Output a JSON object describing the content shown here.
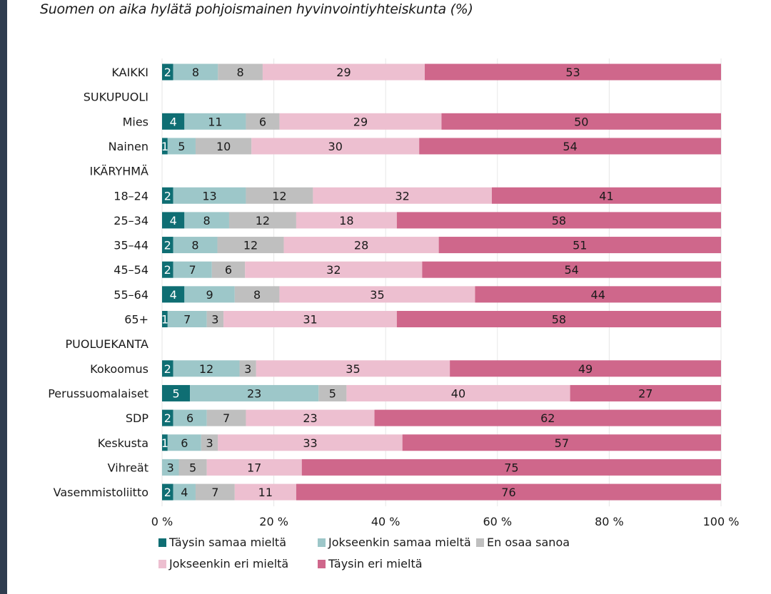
{
  "chart_data": {
    "type": "bar",
    "orientation": "horizontal",
    "stacked": true,
    "title": "Suomen on aika hylätä pohjoismainen hyvinvointiyhteiskunta (%)",
    "xlabel": "",
    "ylabel": "",
    "xlim": [
      0,
      100
    ],
    "x_ticks": [
      "0 %",
      "20 %",
      "40 %",
      "60 %",
      "80 %",
      "100 %"
    ],
    "x_tick_values": [
      0,
      20,
      40,
      60,
      80,
      100
    ],
    "grid": "vertical",
    "legend_position": "bottom",
    "categories": [
      {
        "label": "KAIKKI",
        "is_header": false
      },
      {
        "label": "SUKUPUOLI",
        "is_header": true
      },
      {
        "label": "Mies",
        "is_header": false
      },
      {
        "label": "Nainen",
        "is_header": false
      },
      {
        "label": "IKÄRYHMÄ",
        "is_header": true
      },
      {
        "label": "18–24",
        "is_header": false
      },
      {
        "label": "25–34",
        "is_header": false
      },
      {
        "label": "35–44",
        "is_header": false
      },
      {
        "label": "45–54",
        "is_header": false
      },
      {
        "label": "55–64",
        "is_header": false
      },
      {
        "label": "65+",
        "is_header": false
      },
      {
        "label": "PUOLUEKANTA",
        "is_header": true
      },
      {
        "label": "Kokoomus",
        "is_header": false
      },
      {
        "label": "Perussuomalaiset",
        "is_header": false
      },
      {
        "label": "SDP",
        "is_header": false
      },
      {
        "label": "Keskusta",
        "is_header": false
      },
      {
        "label": "Vihreät",
        "is_header": false
      },
      {
        "label": "Vasemmistoliitto",
        "is_header": false
      }
    ],
    "series": [
      {
        "name": "Täysin samaa mieltä",
        "color": "#0f6e73",
        "label_color": "#ffffff",
        "values": [
          2,
          null,
          4,
          1,
          null,
          2,
          4,
          2,
          2,
          4,
          1,
          null,
          2,
          5,
          2,
          1,
          0,
          2
        ]
      },
      {
        "name": "Jokseenkin samaa mieltä",
        "color": "#9dc7c9",
        "label_color": "#1a1a1a",
        "values": [
          8,
          null,
          11,
          5,
          null,
          13,
          8,
          8,
          7,
          9,
          7,
          null,
          12,
          23,
          6,
          6,
          3,
          4
        ]
      },
      {
        "name": "En osaa sanoa",
        "color": "#bfbfbf",
        "label_color": "#1a1a1a",
        "values": [
          8,
          null,
          6,
          10,
          null,
          12,
          12,
          12,
          6,
          8,
          3,
          null,
          3,
          5,
          7,
          3,
          5,
          7
        ]
      },
      {
        "name": "Jokseenkin eri mieltä",
        "color": "#edbfd0",
        "label_color": "#1a1a1a",
        "values": [
          29,
          null,
          29,
          30,
          null,
          32,
          18,
          28,
          32,
          35,
          31,
          null,
          35,
          40,
          23,
          33,
          17,
          11
        ]
      },
      {
        "name": "Täysin eri mieltä",
        "color": "#cf678b",
        "label_color": "#1a1a1a",
        "values": [
          53,
          null,
          50,
          54,
          null,
          41,
          58,
          51,
          54,
          44,
          58,
          null,
          49,
          27,
          62,
          57,
          75,
          76
        ]
      }
    ]
  },
  "frame": {
    "left_strip_color": "#2f3d4f"
  }
}
